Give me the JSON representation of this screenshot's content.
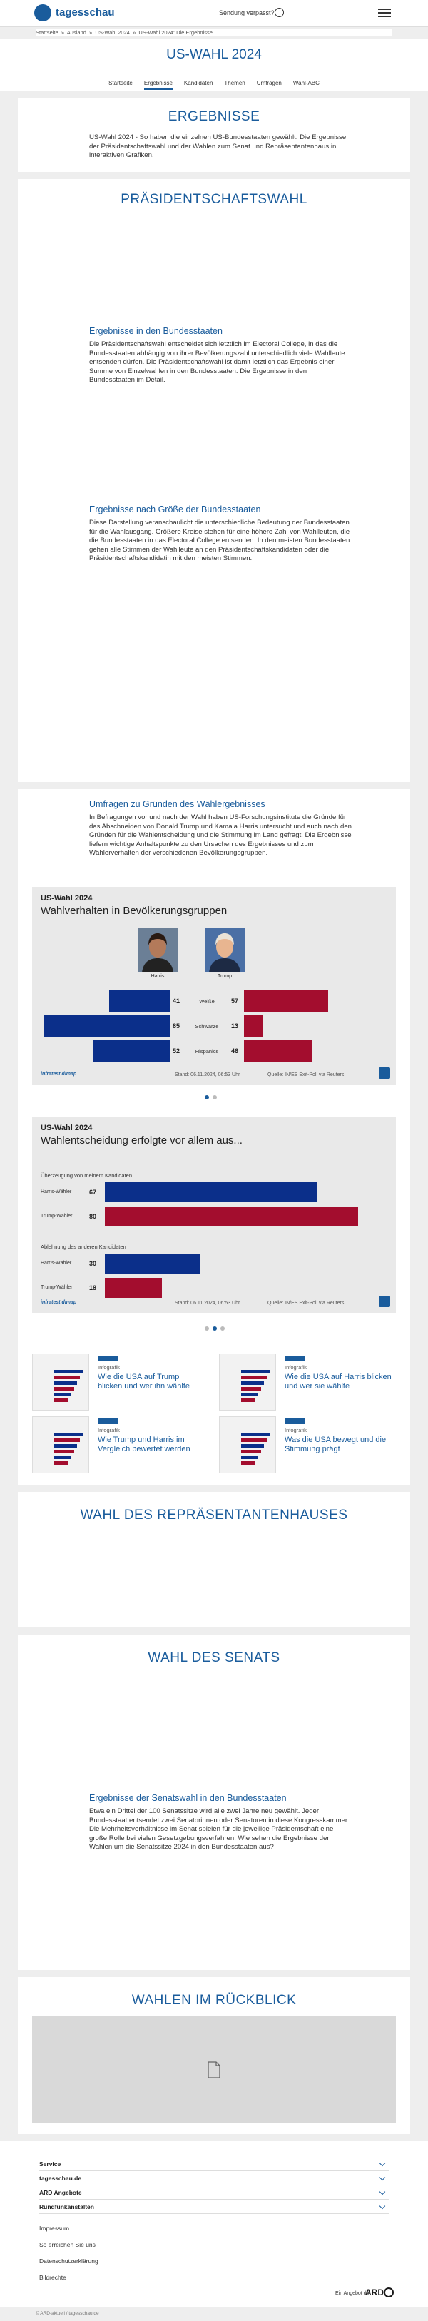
{
  "header": {
    "logo": "tagesschau",
    "missed": "Sendung verpasst?"
  },
  "breadcrumb": [
    "Startseite",
    "Ausland",
    "US-Wahl 2024",
    "US-Wahl 2024: Die Ergebnisse"
  ],
  "page_title": "US-WAHL 2024",
  "nav": [
    "Startseite",
    "Ergebnisse",
    "Kandidaten",
    "Themen",
    "Umfragen",
    "Wahl-ABC"
  ],
  "results": {
    "heading": "ERGEBNISSE",
    "text": "US-Wahl 2024 - So haben die einzelnen US-Bundesstaaten gewählt: Die Ergebnisse der Präsidentschaftswahl und der Wahlen zum Senat und Repräsentantenhaus in interaktiven Grafiken."
  },
  "president": {
    "heading": "PRÄSIDENTSCHAFTSWAHL",
    "states_title": "Ergebnisse in den Bundesstaaten",
    "states_text": "Die Präsidentschaftswahl entscheidet sich letztlich im Electoral College, in das die Bundesstaaten abhängig von ihrer Bevölkerungszahl unterschiedlich viele Wahlleute entsenden dürfen. Die Präsidentschaftswahl ist damit letztlich das Ergebnis einer Summe von Einzelwahlen in den Bundesstaaten. Die Ergebnisse in den Bundesstaaten im Detail.",
    "size_title": "Ergebnisse nach Größe der Bundesstaaten",
    "size_text": "Diese Darstellung veranschaulicht die unterschiedliche Bedeutung der Bundesstaaten für die Wahlausgang. Größere Kreise stehen für eine höhere Zahl von Wahlleuten, die die Bundesstaaten in das Electoral College entsenden. In den meisten Bundesstaaten gehen alle Stimmen der Wahlleute an den Präsidentschaftskandidaten oder die Präsidentschaftskandidatin mit den meisten Stimmen."
  },
  "polls": {
    "title": "Umfragen zu Gründen des Wählergebnisses",
    "text": "In Befragungen vor und nach der Wahl haben US-Forschungsinstitute die Gründe für das Abschneiden von Donald Trump und Kamala Harris untersucht und auch nach den Gründen für die Wahlentscheidung und die Stimmung im Land gefragt. Die Ergebnisse liefern wichtige Anhaltspunkte zu den Ursachen des Ergebnisses und zum Wählerverhalten der verschiedenen Bevölkerungsgruppen."
  },
  "groups_chart": {
    "kicker": "US-Wahl 2024",
    "title": "Wahlverhalten in Bevölkerungsgruppen",
    "candidates": [
      "Harris",
      "Trump"
    ],
    "colors": [
      "#0b2f8a",
      "#a30d2e"
    ],
    "rows": [
      {
        "group": "Weiße",
        "harris": 41,
        "trump": 57
      },
      {
        "group": "Schwarze",
        "harris": 85,
        "trump": 13
      },
      {
        "group": "Hispanics",
        "harris": 52,
        "trump": 46
      }
    ],
    "brand": "infratest dimap",
    "stand": "Stand: 06.11.2024, 06:53 Uhr",
    "source": "Quelle: IN/ES Exit-Poll via Reuters"
  },
  "motive_chart": {
    "kicker": "US-Wahl 2024",
    "title": "Wahlentscheidung erfolgte vor allem aus...",
    "sections": [
      {
        "label": "Überzeugung von meinem Kandidaten",
        "rows": [
          {
            "name": "Harris-Wähler",
            "value": 67,
            "color": "#0b2f8a"
          },
          {
            "name": "Trump-Wähler",
            "value": 80,
            "color": "#a30d2e"
          }
        ]
      },
      {
        "label": "Ablehnung des anderen Kandidaten",
        "rows": [
          {
            "name": "Harris-Wähler",
            "value": 30,
            "color": "#0b2f8a"
          },
          {
            "name": "Trump-Wähler",
            "value": 18,
            "color": "#a30d2e"
          }
        ]
      }
    ],
    "brand": "infratest dimap",
    "stand": "Stand: 06.11.2024, 06:53 Uhr",
    "source": "Quelle: IN/ES Exit-Poll via Reuters"
  },
  "teasers": [
    {
      "type": "Infografik",
      "title": "Wie die USA auf Trump blicken und wer ihn wählte"
    },
    {
      "type": "Infografik",
      "title": "Wie die USA auf Harris blicken und wer sie wählte"
    },
    {
      "type": "Infografik",
      "title": "Wie Trump und Harris im Vergleich bewertet werden"
    },
    {
      "type": "Infografik",
      "title": "Was die USA bewegt und die Stimmung prägt"
    }
  ],
  "house": {
    "heading": "WAHL DES REPRÄSENTANTENHAUSES"
  },
  "senate": {
    "heading": "WAHL DES SENATS",
    "states_title": "Ergebnisse der Senatswahl in den Bundesstaaten",
    "states_text": "Etwa ein Drittel der 100 Senatssitze wird alle zwei Jahre neu gewählt. Jeder Bundesstaat entsendet zwei Senatorinnen oder Senatoren in diese Kongresskammer. Die Mehrheitsverhältnisse im Senat spielen für die jeweilige Präsidentschaft eine große Rolle bei vielen Gesetzgebungsverfahren. Wie sehen die Ergebnisse der Wahlen um die Senatssitze 2024 in den Bundesstaaten aus?"
  },
  "review": {
    "heading": "WAHLEN IM RÜCKBLICK"
  },
  "footer": {
    "accordion": [
      "Service",
      "tagesschau.de",
      "ARD Angebote",
      "Rundfunkanstalten"
    ],
    "links": [
      "Impressum",
      "So erreichen Sie uns",
      "Datenschutzerklärung",
      "Bildrechte"
    ],
    "offer": "Ein Angebot der",
    "ard": "ARD",
    "copyright": "© ARD-aktuell / tagesschau.de"
  }
}
